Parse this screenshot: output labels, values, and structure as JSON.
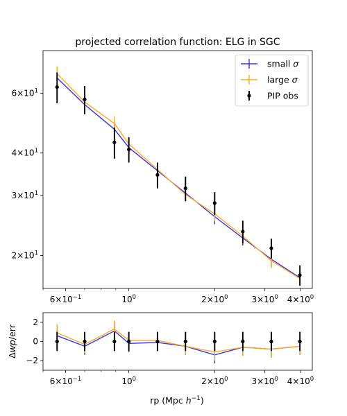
{
  "figure": {
    "xlabel_text": "rp (Mpc ",
    "xlabel_sup": "h",
    "xlabel_exp": "−1",
    "xlabel_close": ")"
  },
  "chart_data": [
    {
      "type": "line",
      "title": "projected correlation function: ELG in SGC",
      "xscale": "log",
      "yscale": "log",
      "xlim": [
        0.5,
        4.4
      ],
      "ylim": [
        16.0,
        80.0
      ],
      "x": [
        0.56,
        0.7,
        0.89,
        1.0,
        1.26,
        1.58,
        2.0,
        2.51,
        3.16,
        3.98
      ],
      "xticks": [
        {
          "value": 0.6,
          "base": "6×10",
          "exp": "−1"
        },
        {
          "value": 1.0,
          "base": "10",
          "exp": "0"
        },
        {
          "value": 2.0,
          "base": "2×10",
          "exp": "0"
        },
        {
          "value": 3.0,
          "base": "3×10",
          "exp": "0"
        },
        {
          "value": 4.0,
          "base": "4×10",
          "exp": "0"
        }
      ],
      "yticks": [
        {
          "value": 20,
          "base": "2×10",
          "exp": "1"
        },
        {
          "value": 30,
          "base": "3×10",
          "exp": "1"
        },
        {
          "value": 40,
          "base": "4×10",
          "exp": "1"
        },
        {
          "value": 60,
          "base": "6×10",
          "exp": "1"
        }
      ],
      "legend": {
        "placement": "top-right",
        "entries": [
          {
            "label": "small ",
            "symbol": "σ",
            "series": "small"
          },
          {
            "label": "large ",
            "symbol": "σ",
            "series": "large"
          },
          {
            "label": "PIP obs",
            "symbol": "",
            "series": "obs"
          }
        ]
      },
      "series": [
        {
          "key": "small",
          "color": "#3333ee",
          "y": [
            66.5,
            55.5,
            47.0,
            41.5,
            35.5,
            30.5,
            26.0,
            22.5,
            19.5,
            17.2
          ],
          "yerr": [
            3.2,
            2.7,
            2.4,
            2.1,
            1.8,
            1.5,
            1.3,
            1.1,
            0.95,
            0.85
          ]
        },
        {
          "key": "large",
          "color": "#ffaa22",
          "y": [
            68.5,
            56.5,
            48.8,
            42.5,
            35.8,
            30.2,
            26.5,
            22.8,
            19.3,
            17.1
          ],
          "yerr": [
            3.4,
            2.8,
            2.5,
            2.1,
            1.8,
            1.5,
            1.3,
            1.1,
            0.95,
            0.85
          ]
        },
        {
          "key": "obs",
          "color": "#000000",
          "markers": true,
          "y": [
            62.5,
            57.5,
            43.0,
            41.0,
            34.5,
            31.5,
            28.5,
            23.5,
            21.0,
            17.5
          ],
          "yerr": [
            6.5,
            5.5,
            4.5,
            3.5,
            3.0,
            2.6,
            2.2,
            1.8,
            1.4,
            1.2
          ]
        }
      ]
    },
    {
      "type": "line",
      "xscale": "log",
      "xlim": [
        0.5,
        4.4
      ],
      "ylim": [
        -3.0,
        3.0
      ],
      "ylabel_prefix": "Δ",
      "ylabel_var": "wp",
      "ylabel_suffix": "/err",
      "xlabel": "rp (Mpc h⁻¹)",
      "x": [
        0.56,
        0.7,
        0.89,
        1.0,
        1.26,
        1.58,
        2.0,
        2.51,
        3.16,
        3.98
      ],
      "xticks": [
        {
          "value": 0.6,
          "base": "6×10",
          "exp": "−1"
        },
        {
          "value": 1.0,
          "base": "10",
          "exp": "0"
        },
        {
          "value": 2.0,
          "base": "2×10",
          "exp": "0"
        },
        {
          "value": 3.0,
          "base": "3×10",
          "exp": "0"
        },
        {
          "value": 4.0,
          "base": "4×10",
          "exp": "0"
        }
      ],
      "yticks": [
        {
          "value": 2,
          "label": "2"
        },
        {
          "value": 0,
          "label": "0"
        },
        {
          "value": -2,
          "label": "−2"
        }
      ],
      "series": [
        {
          "key": "small",
          "color": "#3333ee",
          "y": [
            0.6,
            -0.5,
            1.1,
            -0.2,
            -0.1,
            -0.5,
            -1.4,
            -0.6,
            -0.8,
            -0.5
          ],
          "yerr": [
            0.9,
            0.9,
            0.9,
            0.9,
            0.9,
            0.9,
            0.9,
            0.9,
            0.9,
            0.9
          ]
        },
        {
          "key": "large",
          "color": "#ffaa22",
          "y": [
            0.9,
            -0.3,
            1.3,
            0.1,
            0.1,
            -0.5,
            -1.1,
            -0.6,
            -0.8,
            -0.5
          ],
          "yerr": [
            0.9,
            0.9,
            0.9,
            0.9,
            0.9,
            0.9,
            0.9,
            0.9,
            0.9,
            0.9
          ]
        },
        {
          "key": "obs",
          "color": "#000000",
          "markers": true,
          "y": [
            0,
            0,
            0,
            0,
            0,
            0,
            0,
            0,
            0,
            0
          ],
          "yerr": [
            1.0,
            1.0,
            1.0,
            1.0,
            1.0,
            1.0,
            1.0,
            1.0,
            1.0,
            1.0
          ]
        }
      ]
    }
  ]
}
